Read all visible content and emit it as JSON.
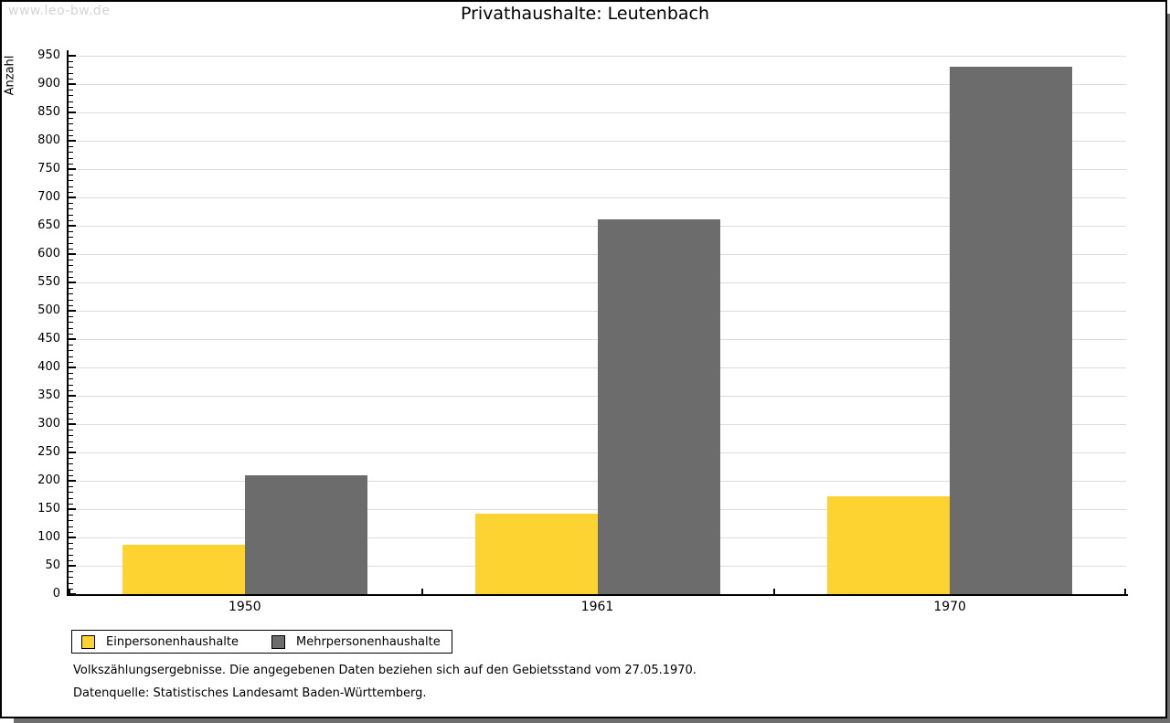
{
  "watermark": "www.leo-bw.de",
  "title": "Privathaushalte: Leutenbach",
  "footer": {
    "line1": "Volkszählungsergebnisse. Die angegebenen Daten beziehen sich auf den Gebietsstand vom 27.05.1970.",
    "line2": "Datenquelle: Statistisches Landesamt Baden-Württemberg."
  },
  "colors": {
    "series_einpersonen": "#FCD330",
    "series_mehrpersonen": "#6C6C6C",
    "gridline": "#DCDCDC",
    "axis": "#000000",
    "watermark": "#D4D4D4",
    "shadow": "#6E6E6E"
  },
  "chart_data": {
    "type": "bar",
    "title": "Privathaushalte: Leutenbach",
    "xlabel": "",
    "ylabel": "Anzahl",
    "categories": [
      "1950",
      "1961",
      "1970"
    ],
    "series": [
      {
        "name": "Einpersonenhaushalte",
        "color": "#FCD330",
        "values": [
          87,
          142,
          172
        ]
      },
      {
        "name": "Mehrpersonenhaushalte",
        "color": "#6C6C6C",
        "values": [
          210,
          662,
          930
        ]
      }
    ],
    "ylim": [
      0,
      950
    ],
    "ytick_step": 50,
    "yticks": [
      0,
      50,
      100,
      150,
      200,
      250,
      300,
      350,
      400,
      450,
      500,
      550,
      600,
      650,
      700,
      750,
      800,
      850,
      900,
      950
    ],
    "minor_tick_step": 10,
    "grid": true,
    "legend_position": "bottom-left"
  }
}
